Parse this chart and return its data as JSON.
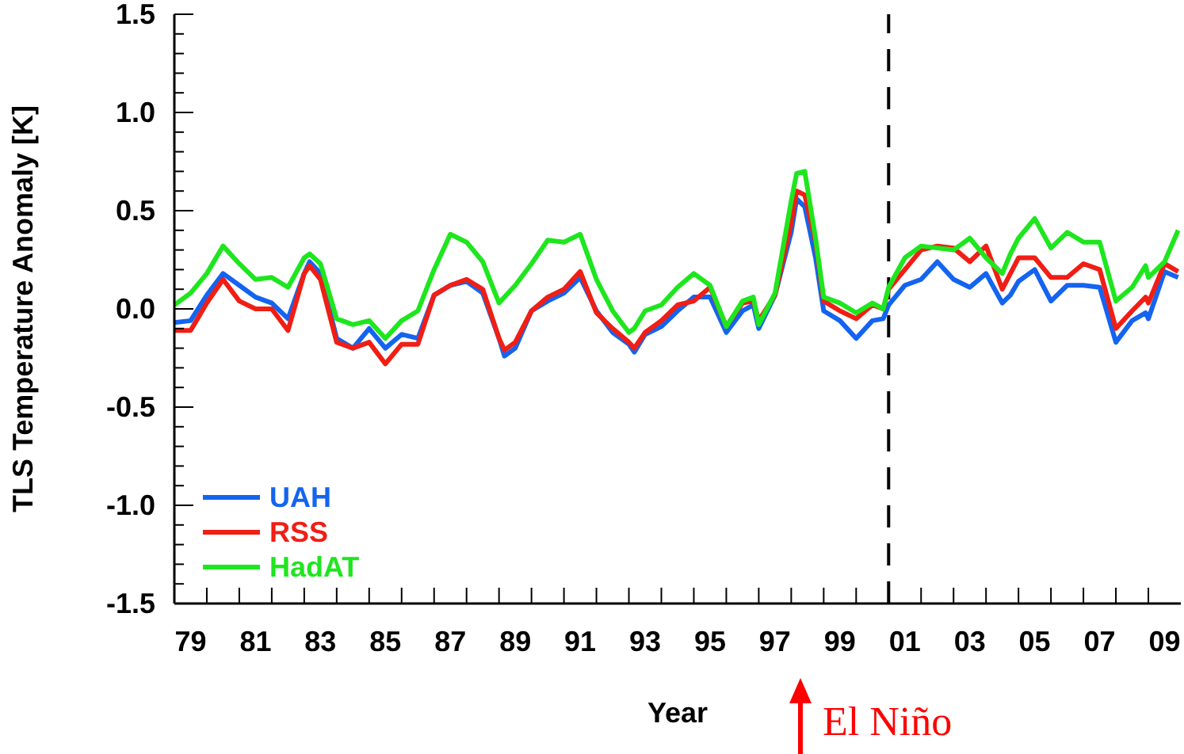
{
  "chart_data": {
    "type": "line",
    "ylabel": "TLS Temperature Anomaly [K]",
    "xlabel": "Year",
    "annotations": [
      "El Niño"
    ],
    "x": [
      "1979-01",
      "1979-07",
      "1980-01",
      "1980-07",
      "1981-01",
      "1981-07",
      "1982-01",
      "1982-07",
      "1983-01",
      "1983-03",
      "1983-07",
      "1984-01",
      "1984-07",
      "1985-01",
      "1985-07",
      "1986-01",
      "1986-07",
      "1987-01",
      "1987-07",
      "1988-01",
      "1988-07",
      "1989-01",
      "1989-03",
      "1989-07",
      "1990-01",
      "1990-07",
      "1991-01",
      "1991-07",
      "1992-01",
      "1992-07",
      "1993-01",
      "1993-03",
      "1993-07",
      "1994-01",
      "1994-07",
      "1995-01",
      "1995-07",
      "1996-01",
      "1996-07",
      "1996-11",
      "1997-01",
      "1997-07",
      "1998-01",
      "1998-03",
      "1998-06",
      "1998-10",
      "1999-01",
      "1999-07",
      "2000-01",
      "2000-07",
      "2000-11",
      "2001-01",
      "2001-07",
      "2002-01",
      "2002-07",
      "2003-01",
      "2003-07",
      "2004-01",
      "2004-07",
      "2004-10",
      "2005-01",
      "2005-07",
      "2006-01",
      "2006-07",
      "2007-01",
      "2007-07",
      "2008-01",
      "2008-07",
      "2008-12",
      "2009-01",
      "2009-07",
      "2009-12"
    ],
    "series": [
      {
        "name": "UAH",
        "color": "#1464f0",
        "values": [
          -0.07,
          -0.06,
          0.07,
          0.18,
          0.12,
          0.06,
          0.03,
          -0.05,
          0.18,
          0.24,
          0.18,
          -0.15,
          -0.2,
          -0.1,
          -0.2,
          -0.13,
          -0.15,
          0.07,
          0.12,
          0.14,
          0.08,
          -0.15,
          -0.24,
          -0.2,
          -0.01,
          0.04,
          0.08,
          0.16,
          -0.01,
          -0.12,
          -0.18,
          -0.22,
          -0.13,
          -0.09,
          -0.01,
          0.06,
          0.06,
          -0.12,
          -0.01,
          0.02,
          -0.1,
          0.07,
          0.39,
          0.56,
          0.52,
          0.26,
          -0.01,
          -0.06,
          -0.15,
          -0.06,
          -0.05,
          0.02,
          0.12,
          0.15,
          0.24,
          0.15,
          0.11,
          0.18,
          0.03,
          0.07,
          0.14,
          0.2,
          0.04,
          0.12,
          0.12,
          0.11,
          -0.17,
          -0.06,
          -0.02,
          -0.05,
          0.19,
          0.16
        ]
      },
      {
        "name": "RSS",
        "color": "#f01e14",
        "values": [
          -0.11,
          -0.11,
          0.03,
          0.15,
          0.04,
          0,
          0,
          -0.11,
          0.18,
          0.22,
          0.15,
          -0.17,
          -0.2,
          -0.17,
          -0.28,
          -0.18,
          -0.18,
          0.07,
          0.12,
          0.15,
          0.1,
          -0.15,
          -0.21,
          -0.17,
          -0.01,
          0.06,
          0.1,
          0.19,
          -0.02,
          -0.1,
          -0.17,
          -0.2,
          -0.12,
          -0.06,
          0.02,
          0.04,
          0.11,
          -0.09,
          0.03,
          0.04,
          -0.06,
          0.07,
          0.44,
          0.6,
          0.58,
          0.34,
          0.04,
          -0.01,
          -0.05,
          0.02,
          0,
          0.1,
          0.2,
          0.3,
          0.32,
          0.31,
          0.24,
          0.32,
          0.1,
          0.18,
          0.26,
          0.26,
          0.16,
          0.16,
          0.23,
          0.2,
          -0.1,
          -0.01,
          0.06,
          0.03,
          0.23,
          0.19
        ]
      },
      {
        "name": "HadAT",
        "color": "#1ee61e",
        "values": [
          0.02,
          0.08,
          0.18,
          0.32,
          0.23,
          0.15,
          0.16,
          0.11,
          0.26,
          0.28,
          0.23,
          -0.05,
          -0.08,
          -0.06,
          -0.15,
          -0.06,
          -0.01,
          0.2,
          0.38,
          0.34,
          0.24,
          0.03,
          0.06,
          0.12,
          0.23,
          0.35,
          0.34,
          0.38,
          0.15,
          -0.01,
          -0.12,
          -0.1,
          -0.01,
          0.02,
          0.11,
          0.18,
          0.12,
          -0.09,
          0.04,
          0.06,
          -0.08,
          0.08,
          0.55,
          0.69,
          0.7,
          0.36,
          0.06,
          0.03,
          -0.02,
          0.03,
          0,
          0.11,
          0.26,
          0.32,
          0.31,
          0.3,
          0.36,
          0.26,
          0.18,
          0.28,
          0.36,
          0.46,
          0.31,
          0.39,
          0.34,
          0.34,
          0.04,
          0.11,
          0.22,
          0.16,
          0.24,
          0.4
        ]
      }
    ],
    "xlim": [
      "1979-01",
      "2010-01"
    ],
    "xticks": [
      {
        "value": "1979-07",
        "label": "79"
      },
      {
        "value": "1980-01",
        "label": null
      },
      {
        "value": "1981-01",
        "label": null
      },
      {
        "value": "1981-07",
        "label": "81"
      },
      {
        "value": "1982-01",
        "label": null
      },
      {
        "value": "1983-01",
        "label": null
      },
      {
        "value": "1983-07",
        "label": "83"
      },
      {
        "value": "1984-01",
        "label": null
      },
      {
        "value": "1985-01",
        "label": null
      },
      {
        "value": "1985-07",
        "label": "85"
      },
      {
        "value": "1986-01",
        "label": null
      },
      {
        "value": "1987-01",
        "label": null
      },
      {
        "value": "1987-07",
        "label": "87"
      },
      {
        "value": "1988-01",
        "label": null
      },
      {
        "value": "1989-01",
        "label": null
      },
      {
        "value": "1989-07",
        "label": "89"
      },
      {
        "value": "1990-01",
        "label": null
      },
      {
        "value": "1991-01",
        "label": null
      },
      {
        "value": "1991-07",
        "label": "91"
      },
      {
        "value": "1992-01",
        "label": null
      },
      {
        "value": "1993-01",
        "label": null
      },
      {
        "value": "1993-07",
        "label": "93"
      },
      {
        "value": "1994-01",
        "label": null
      },
      {
        "value": "1995-01",
        "label": null
      },
      {
        "value": "1995-07",
        "label": "95"
      },
      {
        "value": "1996-01",
        "label": null
      },
      {
        "value": "1997-01",
        "label": null
      },
      {
        "value": "1997-07",
        "label": "97"
      },
      {
        "value": "1998-01",
        "label": null
      },
      {
        "value": "1999-01",
        "label": null
      },
      {
        "value": "1999-07",
        "label": "99"
      },
      {
        "value": "2000-01",
        "label": null
      },
      {
        "value": "2001-01",
        "label": null
      },
      {
        "value": "2001-07",
        "label": "01"
      },
      {
        "value": "2002-01",
        "label": null
      },
      {
        "value": "2003-01",
        "label": null
      },
      {
        "value": "2003-07",
        "label": "03"
      },
      {
        "value": "2004-01",
        "label": null
      },
      {
        "value": "2005-01",
        "label": null
      },
      {
        "value": "2005-07",
        "label": "05"
      },
      {
        "value": "2006-01",
        "label": null
      },
      {
        "value": "2007-01",
        "label": null
      },
      {
        "value": "2007-07",
        "label": "07"
      },
      {
        "value": "2008-01",
        "label": null
      },
      {
        "value": "2009-01",
        "label": null
      },
      {
        "value": "2009-07",
        "label": "09"
      }
    ],
    "ylim": [
      -1.5,
      1.5
    ],
    "yticks": [
      -1.5,
      {
        "value": -1.4,
        "label": null
      },
      {
        "value": -1.3,
        "label": null
      },
      {
        "value": -1.2,
        "label": null
      },
      {
        "value": -1.1,
        "label": null
      },
      {
        "value": -1,
        "label": "-1.0"
      },
      {
        "value": -0.9,
        "label": null
      },
      {
        "value": -0.8,
        "label": null
      },
      {
        "value": -0.7,
        "label": null
      },
      {
        "value": -0.6,
        "label": null
      },
      -0.5,
      {
        "value": -0.4,
        "label": null
      },
      {
        "value": -0.3,
        "label": null
      },
      {
        "value": -0.2,
        "label": null
      },
      {
        "value": -0.1,
        "label": null
      },
      {
        "value": 0,
        "label": "0.0"
      },
      {
        "value": 0.1,
        "label": null
      },
      {
        "value": 0.2,
        "label": null
      },
      {
        "value": 0.3,
        "label": null
      },
      {
        "value": 0.4,
        "label": null
      },
      0.5,
      {
        "value": 0.6,
        "label": null
      },
      {
        "value": 0.7,
        "label": null
      },
      {
        "value": 0.8,
        "label": null
      },
      {
        "value": 0.9,
        "label": null
      },
      {
        "value": 1,
        "label": "1.0"
      },
      {
        "value": 1.1,
        "label": null
      },
      {
        "value": 1.2,
        "label": null
      },
      {
        "value": 1.3,
        "label": null
      },
      {
        "value": 1.4,
        "label": null
      },
      1.5
    ],
    "ref_lines": [
      {
        "axis": "x",
        "value": "2001-01",
        "color": "#000000",
        "line_style": "dashed"
      }
    ],
    "legend": "bottom left"
  }
}
